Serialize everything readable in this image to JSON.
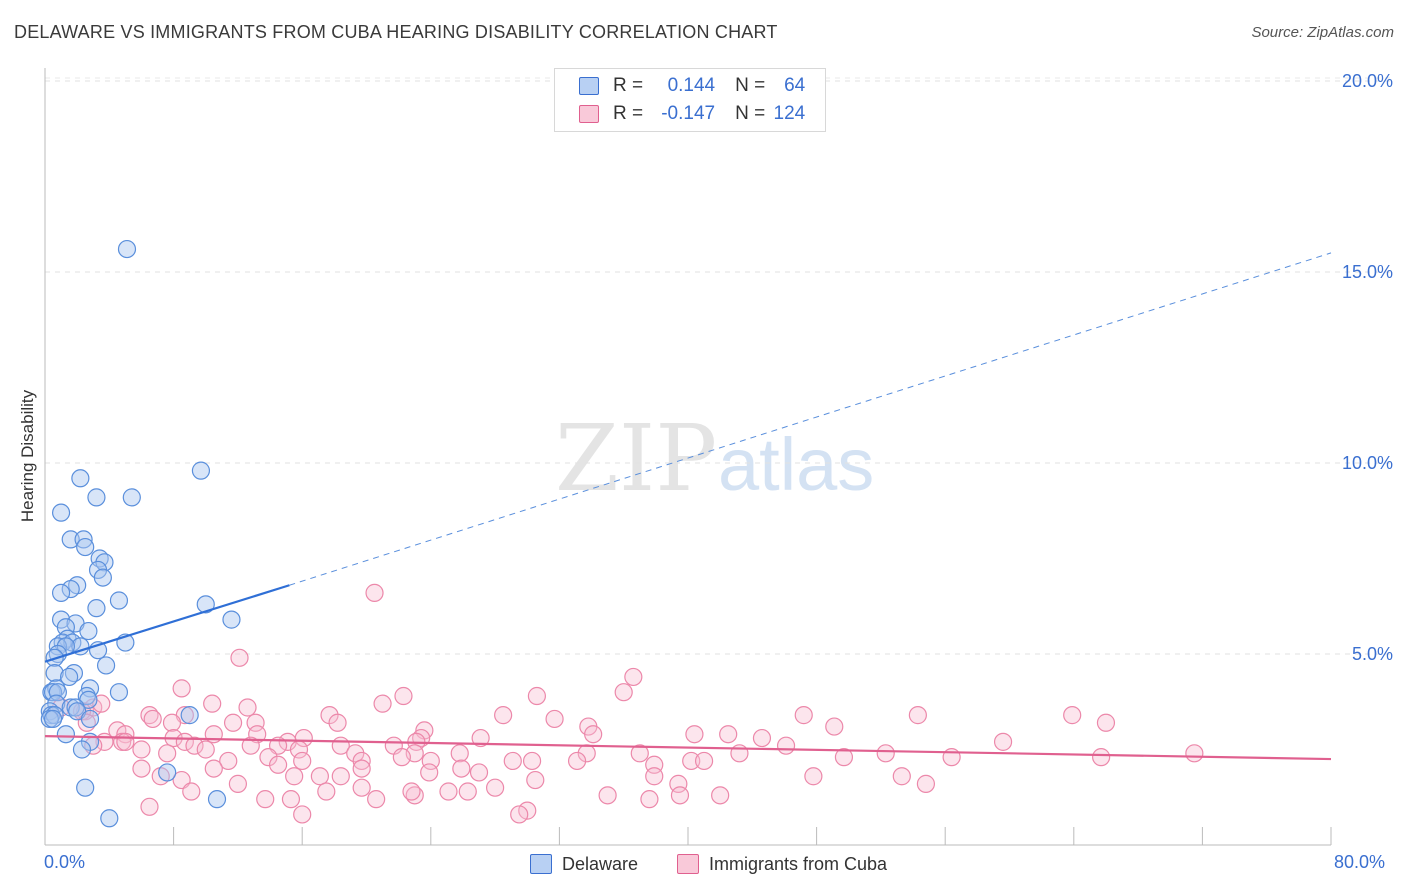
{
  "title": "DELAWARE VS IMMIGRANTS FROM CUBA HEARING DISABILITY CORRELATION CHART",
  "source": "Source: ZipAtlas.com",
  "watermark": {
    "zip": "ZIP",
    "atlas": "atlas"
  },
  "colors": {
    "blue": "#3a6fd0",
    "pink": "#e0608f",
    "blue_fill": "#a9c6f0",
    "pink_fill": "#f7bfd1"
  },
  "legend": {
    "r_label": "R =",
    "n_label": "N =",
    "delaware": {
      "r": "0.144",
      "n": "64"
    },
    "cuba": {
      "r": "-0.147",
      "n": "124"
    }
  },
  "bottom_legend": {
    "delaware": "Delaware",
    "cuba": "Immigrants from Cuba"
  },
  "x_axis": {
    "min_label": "0.0%",
    "max_label": "80.0%"
  },
  "chart_data": {
    "type": "scatter",
    "title": "DELAWARE VS IMMIGRANTS FROM CUBA HEARING DISABILITY CORRELATION CHART",
    "xlabel": "",
    "ylabel": "Hearing Disability",
    "xlim": [
      0,
      80
    ],
    "ylim": [
      0,
      21
    ],
    "y_ticks": [
      5,
      10,
      15,
      20
    ],
    "y_tick_labels": [
      "5.0%",
      "10.0%",
      "15.0%",
      "20.0%"
    ],
    "grid": true,
    "series": [
      {
        "name": "Delaware",
        "color": "#3a6fd0",
        "r": 0.144,
        "n": 64,
        "trend": {
          "x0": 0,
          "y0": 4.8,
          "x1": 15.2,
          "y1": 6.8,
          "dashed_to_x": 80,
          "dashed_to_y": 15.5
        },
        "points": [
          [
            5.1,
            15.6
          ],
          [
            9.7,
            9.8
          ],
          [
            2.2,
            9.6
          ],
          [
            3.2,
            9.1
          ],
          [
            5.4,
            9.1
          ],
          [
            1.0,
            8.7
          ],
          [
            1.6,
            8.0
          ],
          [
            2.4,
            8.0
          ],
          [
            2.5,
            7.8
          ],
          [
            3.4,
            7.5
          ],
          [
            3.7,
            7.4
          ],
          [
            3.3,
            7.2
          ],
          [
            3.6,
            7.0
          ],
          [
            2.0,
            6.8
          ],
          [
            1.6,
            6.7
          ],
          [
            1.0,
            6.6
          ],
          [
            4.6,
            6.4
          ],
          [
            10.0,
            6.3
          ],
          [
            3.2,
            6.2
          ],
          [
            1.0,
            5.9
          ],
          [
            11.6,
            5.9
          ],
          [
            1.9,
            5.8
          ],
          [
            1.3,
            5.7
          ],
          [
            2.7,
            5.6
          ],
          [
            1.4,
            5.4
          ],
          [
            1.1,
            5.3
          ],
          [
            5.0,
            5.3
          ],
          [
            1.7,
            5.3
          ],
          [
            0.8,
            5.2
          ],
          [
            2.2,
            5.2
          ],
          [
            1.3,
            5.2
          ],
          [
            3.3,
            5.1
          ],
          [
            0.8,
            5.0
          ],
          [
            0.6,
            4.9
          ],
          [
            3.8,
            4.7
          ],
          [
            1.8,
            4.5
          ],
          [
            0.6,
            4.5
          ],
          [
            1.5,
            4.4
          ],
          [
            0.4,
            4.0
          ],
          [
            0.7,
            4.1
          ],
          [
            2.8,
            4.1
          ],
          [
            0.5,
            4.0
          ],
          [
            0.8,
            4.0
          ],
          [
            4.6,
            4.0
          ],
          [
            2.6,
            3.9
          ],
          [
            2.7,
            3.8
          ],
          [
            0.7,
            3.7
          ],
          [
            1.6,
            3.6
          ],
          [
            1.9,
            3.6
          ],
          [
            0.3,
            3.5
          ],
          [
            2.0,
            3.5
          ],
          [
            0.4,
            3.4
          ],
          [
            0.6,
            3.4
          ],
          [
            9.0,
            3.4
          ],
          [
            0.3,
            3.3
          ],
          [
            2.8,
            3.3
          ],
          [
            1.3,
            2.9
          ],
          [
            2.8,
            2.7
          ],
          [
            2.3,
            2.5
          ],
          [
            7.6,
            1.9
          ],
          [
            2.5,
            1.5
          ],
          [
            10.7,
            1.2
          ],
          [
            4.0,
            0.7
          ],
          [
            0.5,
            3.3
          ]
        ]
      },
      {
        "name": "Immigrants from Cuba",
        "color": "#e0608f",
        "r": -0.147,
        "n": 124,
        "trend": {
          "x0": 0,
          "y0": 2.85,
          "x1": 80,
          "y1": 2.25
        },
        "points": [
          [
            20.5,
            6.6
          ],
          [
            36.6,
            4.4
          ],
          [
            12.1,
            4.9
          ],
          [
            8.5,
            4.1
          ],
          [
            22.3,
            3.9
          ],
          [
            21.0,
            3.7
          ],
          [
            30.6,
            3.9
          ],
          [
            36.0,
            4.0
          ],
          [
            10.4,
            3.7
          ],
          [
            12.6,
            3.6
          ],
          [
            8.7,
            3.4
          ],
          [
            17.7,
            3.4
          ],
          [
            28.5,
            3.4
          ],
          [
            47.2,
            3.4
          ],
          [
            54.3,
            3.4
          ],
          [
            63.9,
            3.4
          ],
          [
            6.5,
            3.4
          ],
          [
            6.7,
            3.3
          ],
          [
            11.7,
            3.2
          ],
          [
            13.1,
            3.2
          ],
          [
            18.2,
            3.2
          ],
          [
            31.7,
            3.3
          ],
          [
            33.8,
            3.1
          ],
          [
            49.1,
            3.1
          ],
          [
            66.0,
            3.2
          ],
          [
            2.5,
            3.5
          ],
          [
            3.0,
            3.6
          ],
          [
            3.5,
            3.7
          ],
          [
            1.0,
            3.6
          ],
          [
            2.3,
            3.5
          ],
          [
            7.9,
            3.2
          ],
          [
            23.6,
            3.0
          ],
          [
            2.6,
            3.2
          ],
          [
            4.5,
            3.0
          ],
          [
            5.0,
            2.9
          ],
          [
            13.2,
            2.9
          ],
          [
            10.5,
            2.9
          ],
          [
            40.4,
            2.9
          ],
          [
            34.1,
            2.9
          ],
          [
            42.5,
            2.9
          ],
          [
            8.0,
            2.8
          ],
          [
            16.1,
            2.8
          ],
          [
            23.4,
            2.8
          ],
          [
            27.1,
            2.8
          ],
          [
            44.6,
            2.8
          ],
          [
            15.1,
            2.7
          ],
          [
            3.7,
            2.7
          ],
          [
            4.8,
            2.7
          ],
          [
            8.7,
            2.7
          ],
          [
            23.1,
            2.7
          ],
          [
            9.3,
            2.6
          ],
          [
            12.8,
            2.6
          ],
          [
            14.5,
            2.6
          ],
          [
            18.4,
            2.6
          ],
          [
            21.7,
            2.6
          ],
          [
            46.1,
            2.6
          ],
          [
            59.6,
            2.7
          ],
          [
            3.0,
            2.6
          ],
          [
            5.0,
            2.7
          ],
          [
            6.0,
            2.5
          ],
          [
            10.0,
            2.5
          ],
          [
            15.8,
            2.5
          ],
          [
            19.3,
            2.4
          ],
          [
            23.0,
            2.4
          ],
          [
            25.8,
            2.4
          ],
          [
            33.7,
            2.4
          ],
          [
            37.0,
            2.4
          ],
          [
            43.2,
            2.4
          ],
          [
            49.7,
            2.3
          ],
          [
            52.3,
            2.4
          ],
          [
            71.5,
            2.4
          ],
          [
            7.6,
            2.4
          ],
          [
            11.4,
            2.2
          ],
          [
            13.9,
            2.3
          ],
          [
            16.0,
            2.2
          ],
          [
            19.7,
            2.2
          ],
          [
            22.2,
            2.3
          ],
          [
            24.0,
            2.2
          ],
          [
            29.1,
            2.2
          ],
          [
            30.3,
            2.2
          ],
          [
            33.1,
            2.2
          ],
          [
            37.9,
            2.1
          ],
          [
            40.2,
            2.2
          ],
          [
            41.0,
            2.2
          ],
          [
            56.4,
            2.3
          ],
          [
            65.7,
            2.3
          ],
          [
            6.0,
            2.0
          ],
          [
            10.5,
            2.0
          ],
          [
            14.5,
            2.1
          ],
          [
            15.5,
            1.8
          ],
          [
            17.1,
            1.8
          ],
          [
            18.4,
            1.8
          ],
          [
            19.7,
            2.0
          ],
          [
            23.9,
            1.9
          ],
          [
            25.9,
            2.0
          ],
          [
            27.0,
            1.9
          ],
          [
            30.5,
            1.7
          ],
          [
            37.9,
            1.8
          ],
          [
            39.4,
            1.6
          ],
          [
            47.8,
            1.8
          ],
          [
            53.3,
            1.8
          ],
          [
            54.8,
            1.6
          ],
          [
            7.2,
            1.8
          ],
          [
            8.5,
            1.7
          ],
          [
            12.0,
            1.6
          ],
          [
            17.5,
            1.4
          ],
          [
            19.7,
            1.5
          ],
          [
            23.0,
            1.3
          ],
          [
            26.3,
            1.4
          ],
          [
            28.0,
            1.5
          ],
          [
            35.0,
            1.3
          ],
          [
            37.6,
            1.2
          ],
          [
            39.5,
            1.3
          ],
          [
            42.0,
            1.3
          ],
          [
            9.1,
            1.4
          ],
          [
            13.7,
            1.2
          ],
          [
            15.3,
            1.2
          ],
          [
            20.6,
            1.2
          ],
          [
            22.8,
            1.4
          ],
          [
            25.1,
            1.4
          ],
          [
            6.5,
            1.0
          ],
          [
            16.0,
            0.8
          ],
          [
            30.0,
            0.9
          ],
          [
            29.5,
            0.8
          ]
        ]
      }
    ]
  }
}
